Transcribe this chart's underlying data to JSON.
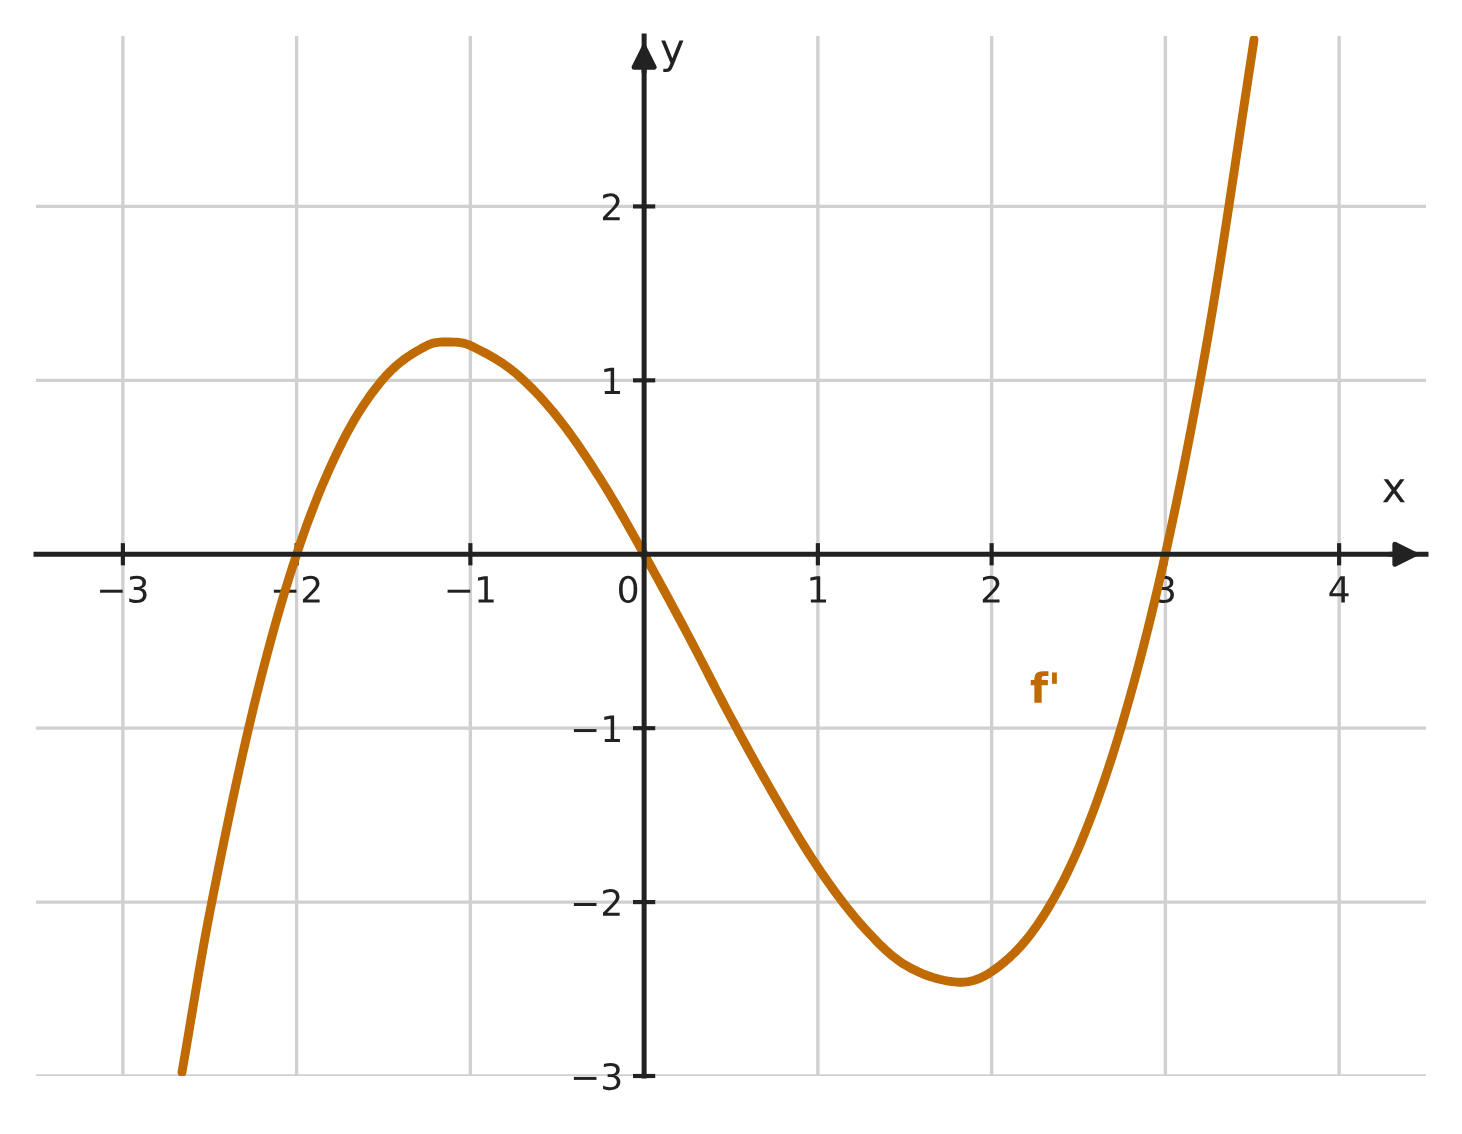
{
  "chart_data": {
    "type": "line",
    "xlabel": "x",
    "ylabel": "y",
    "xlim": [
      -3.5,
      4.5
    ],
    "ylim": [
      -3,
      2.98
    ],
    "xticks": [
      -3,
      -2,
      -1,
      {
        "value": 0,
        "label": "0"
      },
      1,
      2,
      3,
      4
    ],
    "yticks": [
      -3,
      -2,
      -1,
      1,
      2
    ],
    "grid": true,
    "legend": false,
    "marker": "none",
    "line_style": "solid",
    "series": [
      {
        "name": "f'",
        "color": "#bf6a02",
        "x": [
          -2.66,
          -2.5,
          -2.25,
          -2,
          -1.75,
          -1.5,
          -1.25,
          -1.1,
          -1,
          -0.75,
          -0.5,
          -0.25,
          0,
          0.25,
          0.5,
          0.75,
          1,
          1.25,
          1.5,
          1.8,
          2,
          2.25,
          2.5,
          2.75,
          3,
          3.25,
          3.5,
          3.51
        ],
        "values": [
          -2.98,
          -2.06,
          -0.89,
          0,
          0.62,
          1.01,
          1.2,
          1.22,
          1.2,
          1.05,
          0.79,
          0.43,
          0,
          -0.46,
          -0.94,
          -1.39,
          -1.8,
          -2.13,
          -2.36,
          -2.46,
          -2.4,
          -2.15,
          -1.69,
          -0.98,
          0,
          1.28,
          2.89,
          2.96
        ]
      }
    ]
  }
}
